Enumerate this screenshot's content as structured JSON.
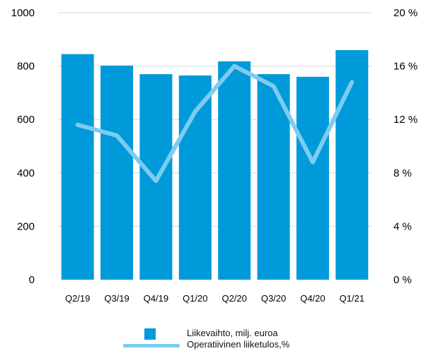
{
  "chart_data": {
    "type": "bar",
    "categories": [
      "Q2/19",
      "Q3/19",
      "Q4/19",
      "Q1/20",
      "Q2/20",
      "Q3/20",
      "Q4/20",
      "Q1/21"
    ],
    "series": [
      {
        "name": "Liikevaihto, milj. euroa",
        "type": "bar",
        "axis": "left",
        "values": [
          845,
          802,
          770,
          765,
          818,
          770,
          760,
          860
        ]
      },
      {
        "name": "Operatiivinen liiketulos,%",
        "type": "line",
        "axis": "right",
        "values": [
          11.6,
          10.8,
          7.4,
          12.6,
          16.0,
          14.5,
          8.8,
          14.8
        ]
      }
    ],
    "ylim_left": [
      0,
      1000
    ],
    "yticks_left": [
      "0",
      "200",
      "400",
      "600",
      "800",
      "1000"
    ],
    "ylim_right": [
      0,
      20
    ],
    "yticks_right": [
      "0 %",
      "4 %",
      "8 %",
      "12 %",
      "16 %",
      "20 %"
    ],
    "grid": true,
    "legend_position": "bottom",
    "colors": {
      "bar": "#009ADA",
      "line": "#7DCCEF",
      "grid": "#D9D9D9"
    }
  }
}
